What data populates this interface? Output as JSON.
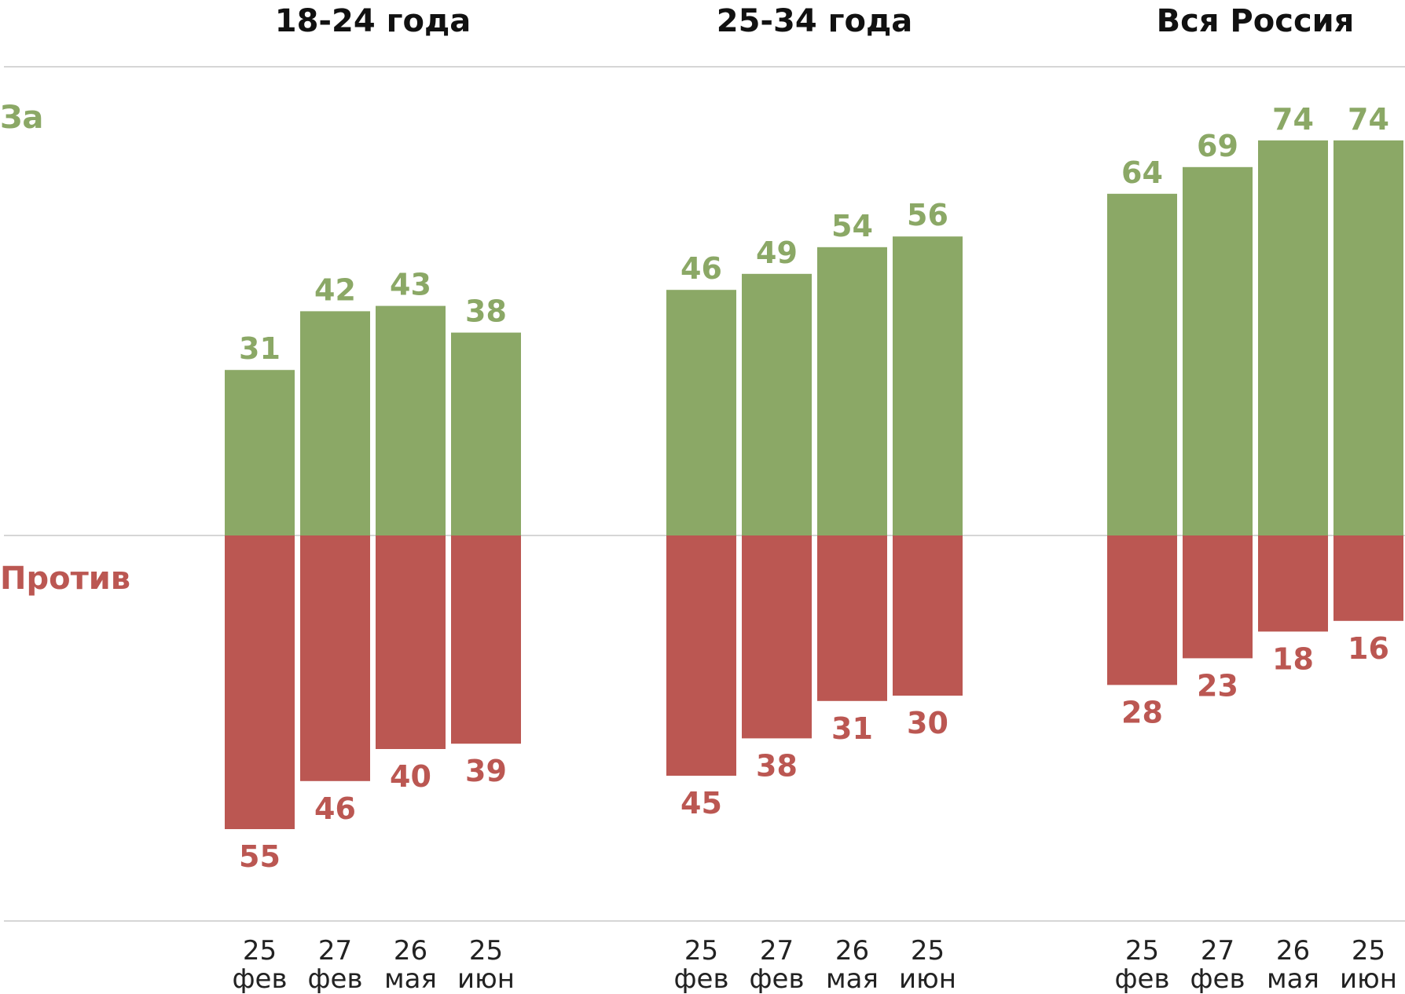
{
  "chart_data": {
    "type": "bar",
    "colors": {
      "for": "#8ba866",
      "against": "#bb5752",
      "grid": "#d6d6d6",
      "text": "#111111"
    },
    "legend": {
      "for": "За",
      "against": "Против"
    },
    "ylim": [
      -74,
      74
    ],
    "categories": [
      {
        "day": "25",
        "month": "фев"
      },
      {
        "day": "27",
        "month": "фев"
      },
      {
        "day": "26",
        "month": "мая"
      },
      {
        "day": "25",
        "month": "июн"
      }
    ],
    "groups": [
      {
        "title": "18-24 года",
        "for": [
          31,
          42,
          43,
          38
        ],
        "against": [
          55,
          46,
          40,
          39
        ]
      },
      {
        "title": "25-34 года",
        "for": [
          46,
          49,
          54,
          56
        ],
        "against": [
          45,
          38,
          31,
          30
        ]
      },
      {
        "title": "Вся Россия",
        "for": [
          64,
          69,
          74,
          74
        ],
        "against": [
          28,
          23,
          18,
          16
        ]
      }
    ]
  }
}
